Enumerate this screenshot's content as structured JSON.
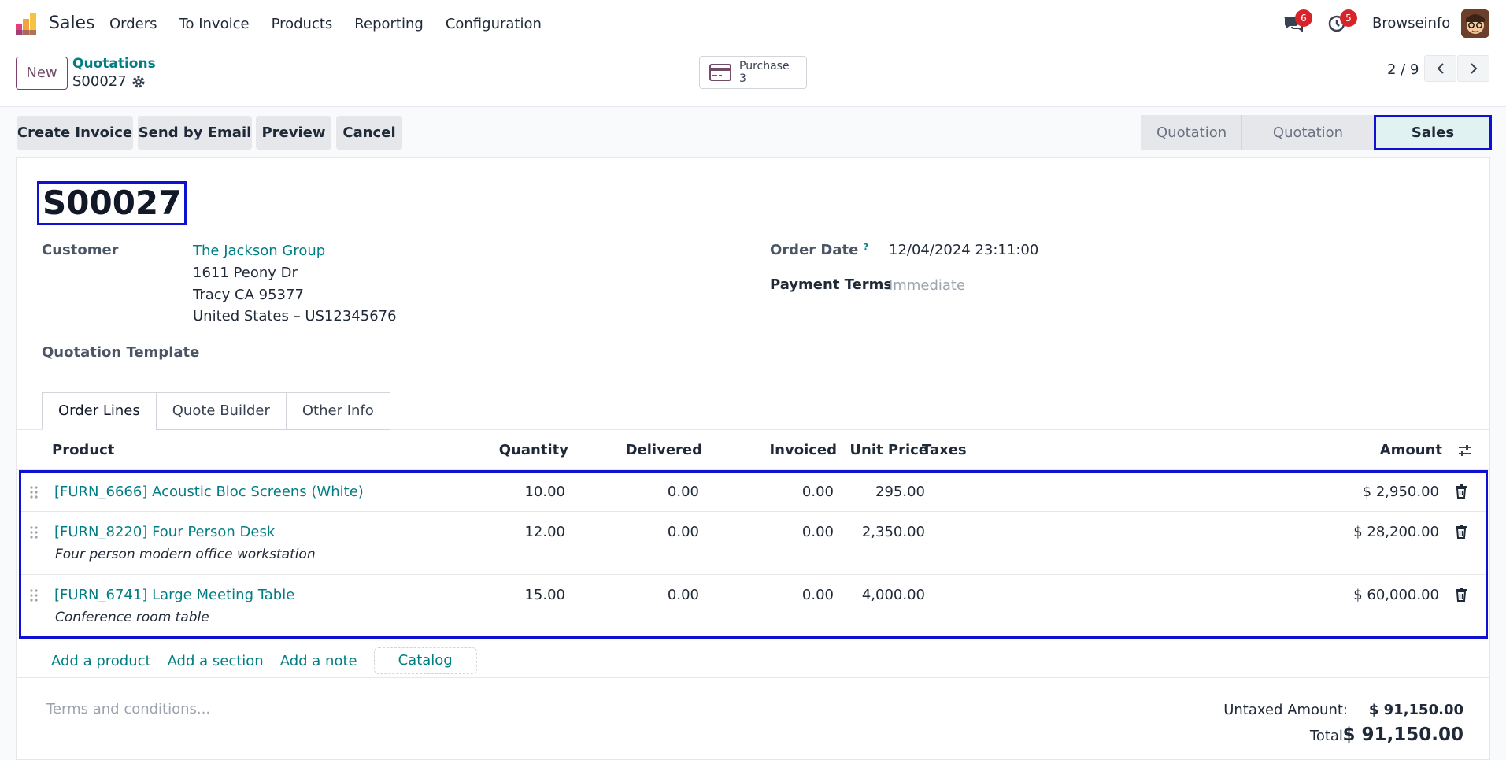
{
  "navbar": {
    "app_name": "Sales",
    "menu": [
      "Orders",
      "To Invoice",
      "Products",
      "Reporting",
      "Configuration"
    ],
    "messages_count": "6",
    "activities_count": "5",
    "company": "Browseinfo"
  },
  "control_panel": {
    "new_label": "New",
    "breadcrumb_parent": "Quotations",
    "breadcrumb_current": "S00027",
    "smart_button": {
      "label": "Purchase",
      "count": "3"
    },
    "pager": "2 / 9"
  },
  "actions": {
    "buttons": [
      "Create Invoice",
      "Send by Email",
      "Preview",
      "Cancel"
    ],
    "statusbar": [
      "Quotation",
      "Quotation Sent",
      "Sales Order"
    ],
    "active_status": "Sales Order"
  },
  "form": {
    "title": "S00027",
    "customer_label": "Customer",
    "customer_name": "The Jackson Group",
    "address_line1": "1611 Peony Dr",
    "address_line2": "Tracy CA 95377",
    "address_line3": "United States – US12345676",
    "quotation_template_label": "Quotation Template",
    "order_date_label": "Order Date",
    "order_date_help": "?",
    "order_date": "12/04/2024 23:11:00",
    "payment_terms_label": "Payment Terms",
    "payment_terms": "Immediate"
  },
  "tabs": [
    "Order Lines",
    "Quote Builder",
    "Other Info"
  ],
  "order_lines": {
    "headers": [
      "Product",
      "Quantity",
      "Delivered",
      "Invoiced",
      "Unit Price",
      "Taxes",
      "Amount"
    ],
    "rows": [
      {
        "product": "[FURN_6666] Acoustic Bloc Screens (White)",
        "description": "",
        "quantity": "10.00",
        "delivered": "0.00",
        "invoiced": "0.00",
        "unit_price": "295.00",
        "taxes": "",
        "amount": "$ 2,950.00"
      },
      {
        "product": "[FURN_8220] Four Person Desk",
        "description": "Four person modern office workstation",
        "quantity": "12.00",
        "delivered": "0.00",
        "invoiced": "0.00",
        "unit_price": "2,350.00",
        "taxes": "",
        "amount": "$ 28,200.00"
      },
      {
        "product": "[FURN_6741] Large Meeting Table",
        "description": "Conference room table",
        "quantity": "15.00",
        "delivered": "0.00",
        "invoiced": "0.00",
        "unit_price": "4,000.00",
        "taxes": "",
        "amount": "$ 60,000.00"
      }
    ],
    "add_links": [
      "Add a product",
      "Add a section",
      "Add a note"
    ],
    "catalog_label": "Catalog"
  },
  "footer": {
    "terms_placeholder": "Terms and conditions...",
    "untaxed_label": "Untaxed Amount:",
    "untaxed_value": "$ 91,150.00",
    "total_label": "Total:",
    "total_value": "$ 91,150.00"
  },
  "colors": {
    "brand": "#714b67",
    "link": "#017e84",
    "highlight": "#1010d4",
    "badge": "#d8232a"
  }
}
